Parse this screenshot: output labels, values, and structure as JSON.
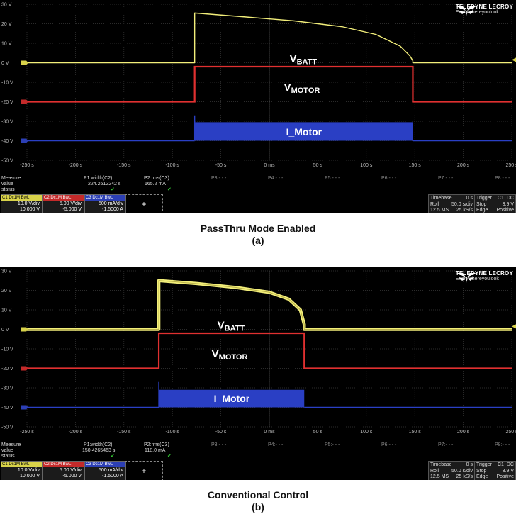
{
  "chart_data": [
    {
      "type": "line",
      "title": "",
      "xlabel": "",
      "ylabel": "",
      "xlim": [
        -250,
        250
      ],
      "ylim": [
        -50,
        30
      ],
      "x_ticks": [
        "-250 s",
        "-200 s",
        "-150 s",
        "-100 s",
        "-50 s",
        "0 ms",
        "50 s",
        "100 s",
        "150 s",
        "200 s",
        "250 s"
      ],
      "x_tick_values": [
        -250,
        -200,
        -150,
        -100,
        -50,
        0,
        50,
        100,
        150,
        200,
        250
      ],
      "y_ticks": [
        "30 V",
        "20 V",
        "10 V",
        "0 V",
        "-10 V",
        "-20 V",
        "-30 V",
        "-40 V",
        "-50 V"
      ],
      "y_tick_values": [
        30,
        20,
        10,
        0,
        -10,
        -20,
        -30,
        -40,
        -50
      ],
      "grid": true,
      "pulse_start": -77,
      "pulse_end": 148,
      "series": [
        {
          "name": "VBATT",
          "color": "#f2ee7a",
          "x": [
            -250,
            -77,
            -77,
            -25,
            25,
            75,
            110,
            135,
            145,
            148,
            148,
            250
          ],
          "y": [
            0,
            0,
            25.5,
            23.5,
            21.5,
            18.5,
            14.5,
            8.5,
            3.5,
            1,
            0,
            0
          ]
        },
        {
          "name": "VMOTOR",
          "color": "#e03030",
          "x": [
            -250,
            -77,
            -77,
            148,
            148,
            250
          ],
          "y": [
            -20,
            -20,
            -2,
            -2,
            -20,
            -20
          ]
        },
        {
          "name": "I_Motor",
          "color": "#2a3fc4",
          "x": [
            -250,
            -77,
            -77,
            148,
            148,
            250
          ],
          "y": [
            -40,
            -40,
            -30.5,
            -30.5,
            -40,
            -40
          ]
        }
      ],
      "labels": {
        "vbatt_main": "V",
        "vbatt_sub": "BATT",
        "vmotor_main": "V",
        "vmotor_sub": "MOTOR",
        "imotor": "I_Motor"
      },
      "measure": {
        "header": "Measure",
        "value_label": "value",
        "status_label": "status",
        "p1_name": "P1:width(C2)",
        "p1_value": "224.2612242 s",
        "p2_name": "P2:rms(C3)",
        "p2_value": "165.2 mA",
        "p3": "P3:- - -",
        "p4": "P4:- - -",
        "p5": "P5:- - -",
        "p6": "P6:- - -",
        "p7": "P7:- - -",
        "p8": "P8:- - -"
      },
      "channels": [
        {
          "hd": "C1 Dc1M BwL",
          "l1": "10.0 V/div",
          "l2": "10.000 V",
          "color": "#d8d24a"
        },
        {
          "hd": "C2 Dc1M BwL",
          "l1": "5.00 V/div",
          "l2": "-5.000 V",
          "color": "#c42a2a"
        },
        {
          "hd": "C3 Dc1M BwL",
          "l1": "500 mA/div",
          "l2": "-1.5000 A",
          "color": "#2c3fb5"
        }
      ],
      "timebase": {
        "title": "Timebase",
        "offset": "0 s",
        "mode": "Roll",
        "rate": "50.0 s/div",
        "samples": "12.5 MS",
        "srate": "25 kS/s"
      },
      "trigger": {
        "title": "Trigger",
        "ch": "C1",
        "coupling": "DC",
        "mode": "Stop",
        "level": "3.9 V",
        "type": "Edge",
        "slope": "Positive"
      },
      "caption_title": "PassThru Mode Enabled",
      "caption_sub": "(a)"
    },
    {
      "type": "line",
      "title": "",
      "xlabel": "",
      "ylabel": "",
      "xlim": [
        -250,
        250
      ],
      "ylim": [
        -50,
        30
      ],
      "x_ticks": [
        "-250 s",
        "-200 s",
        "-150 s",
        "-100 s",
        "-50 s",
        "0 ms",
        "50 s",
        "100 s",
        "150 s",
        "200 s",
        "250 s"
      ],
      "x_tick_values": [
        -250,
        -200,
        -150,
        -100,
        -50,
        0,
        50,
        100,
        150,
        200,
        250
      ],
      "y_ticks": [
        "30 V",
        "20 V",
        "10 V",
        "0 V",
        "-10 V",
        "-20 V",
        "-30 V",
        "-40 V",
        "-50 V"
      ],
      "y_tick_values": [
        30,
        20,
        10,
        0,
        -10,
        -20,
        -30,
        -40,
        -50
      ],
      "grid": true,
      "pulse_start": -114,
      "pulse_end": 36,
      "series": [
        {
          "name": "VBATT",
          "color": "#f2ee7a",
          "x": [
            -250,
            -114,
            -114,
            -75,
            -35,
            0,
            20,
            32,
            36,
            36,
            250
          ],
          "y": [
            0,
            0,
            25,
            23.5,
            21.5,
            19,
            15.5,
            10,
            2.5,
            0,
            0
          ]
        },
        {
          "name": "VMOTOR",
          "color": "#e03030",
          "x": [
            -250,
            -114,
            -114,
            36,
            36,
            250
          ],
          "y": [
            -20,
            -20,
            -2,
            -2,
            -20,
            -20
          ]
        },
        {
          "name": "I_Motor",
          "color": "#2a3fc4",
          "x": [
            -250,
            -114,
            -114,
            36,
            36,
            250
          ],
          "y": [
            -40,
            -40,
            -31,
            -31,
            -40,
            -40
          ]
        }
      ],
      "labels": {
        "vbatt_main": "V",
        "vbatt_sub": "BATT",
        "vmotor_main": "V",
        "vmotor_sub": "MOTOR",
        "imotor": "I_Motor"
      },
      "measure": {
        "header": "Measure",
        "value_label": "value",
        "status_label": "status",
        "p1_name": "P1:width(C2)",
        "p1_value": "150.4265463 s",
        "p2_name": "P2:rms(C3)",
        "p2_value": "118.0 mA",
        "p3": "P3:- - -",
        "p4": "P4:- - -",
        "p5": "P5:- - -",
        "p6": "P6:- - -",
        "p7": "P7:- - -",
        "p8": "P8:- - -"
      },
      "channels": [
        {
          "hd": "C1 Dc1M BwL",
          "l1": "10.0 V/div",
          "l2": "10.000 V",
          "color": "#d8d24a"
        },
        {
          "hd": "C2 Dc1M BwL",
          "l1": "5.00 V/div",
          "l2": "-5.000 V",
          "color": "#c42a2a"
        },
        {
          "hd": "C3 Dc1M BwL",
          "l1": "500 mA/div",
          "l2": "-1.5000 A",
          "color": "#2c3fb5"
        }
      ],
      "timebase": {
        "title": "Timebase",
        "offset": "0 s",
        "mode": "Roll",
        "rate": "50.0 s/div",
        "samples": "12.5 MS",
        "srate": "25 kS/s"
      },
      "trigger": {
        "title": "Trigger",
        "ch": "C1",
        "coupling": "DC",
        "mode": "Stop",
        "level": "3.9 V",
        "type": "Edge",
        "slope": "Positive"
      },
      "caption_title": "Conventional Control",
      "caption_sub": "(b)"
    }
  ],
  "branding": {
    "brand": "TELEDYNE LECROY",
    "tagline": "Everywhereyoulook"
  },
  "colors": {
    "grid": "#3a3a3a",
    "background": "#000000",
    "text": "#bbbbbb"
  }
}
